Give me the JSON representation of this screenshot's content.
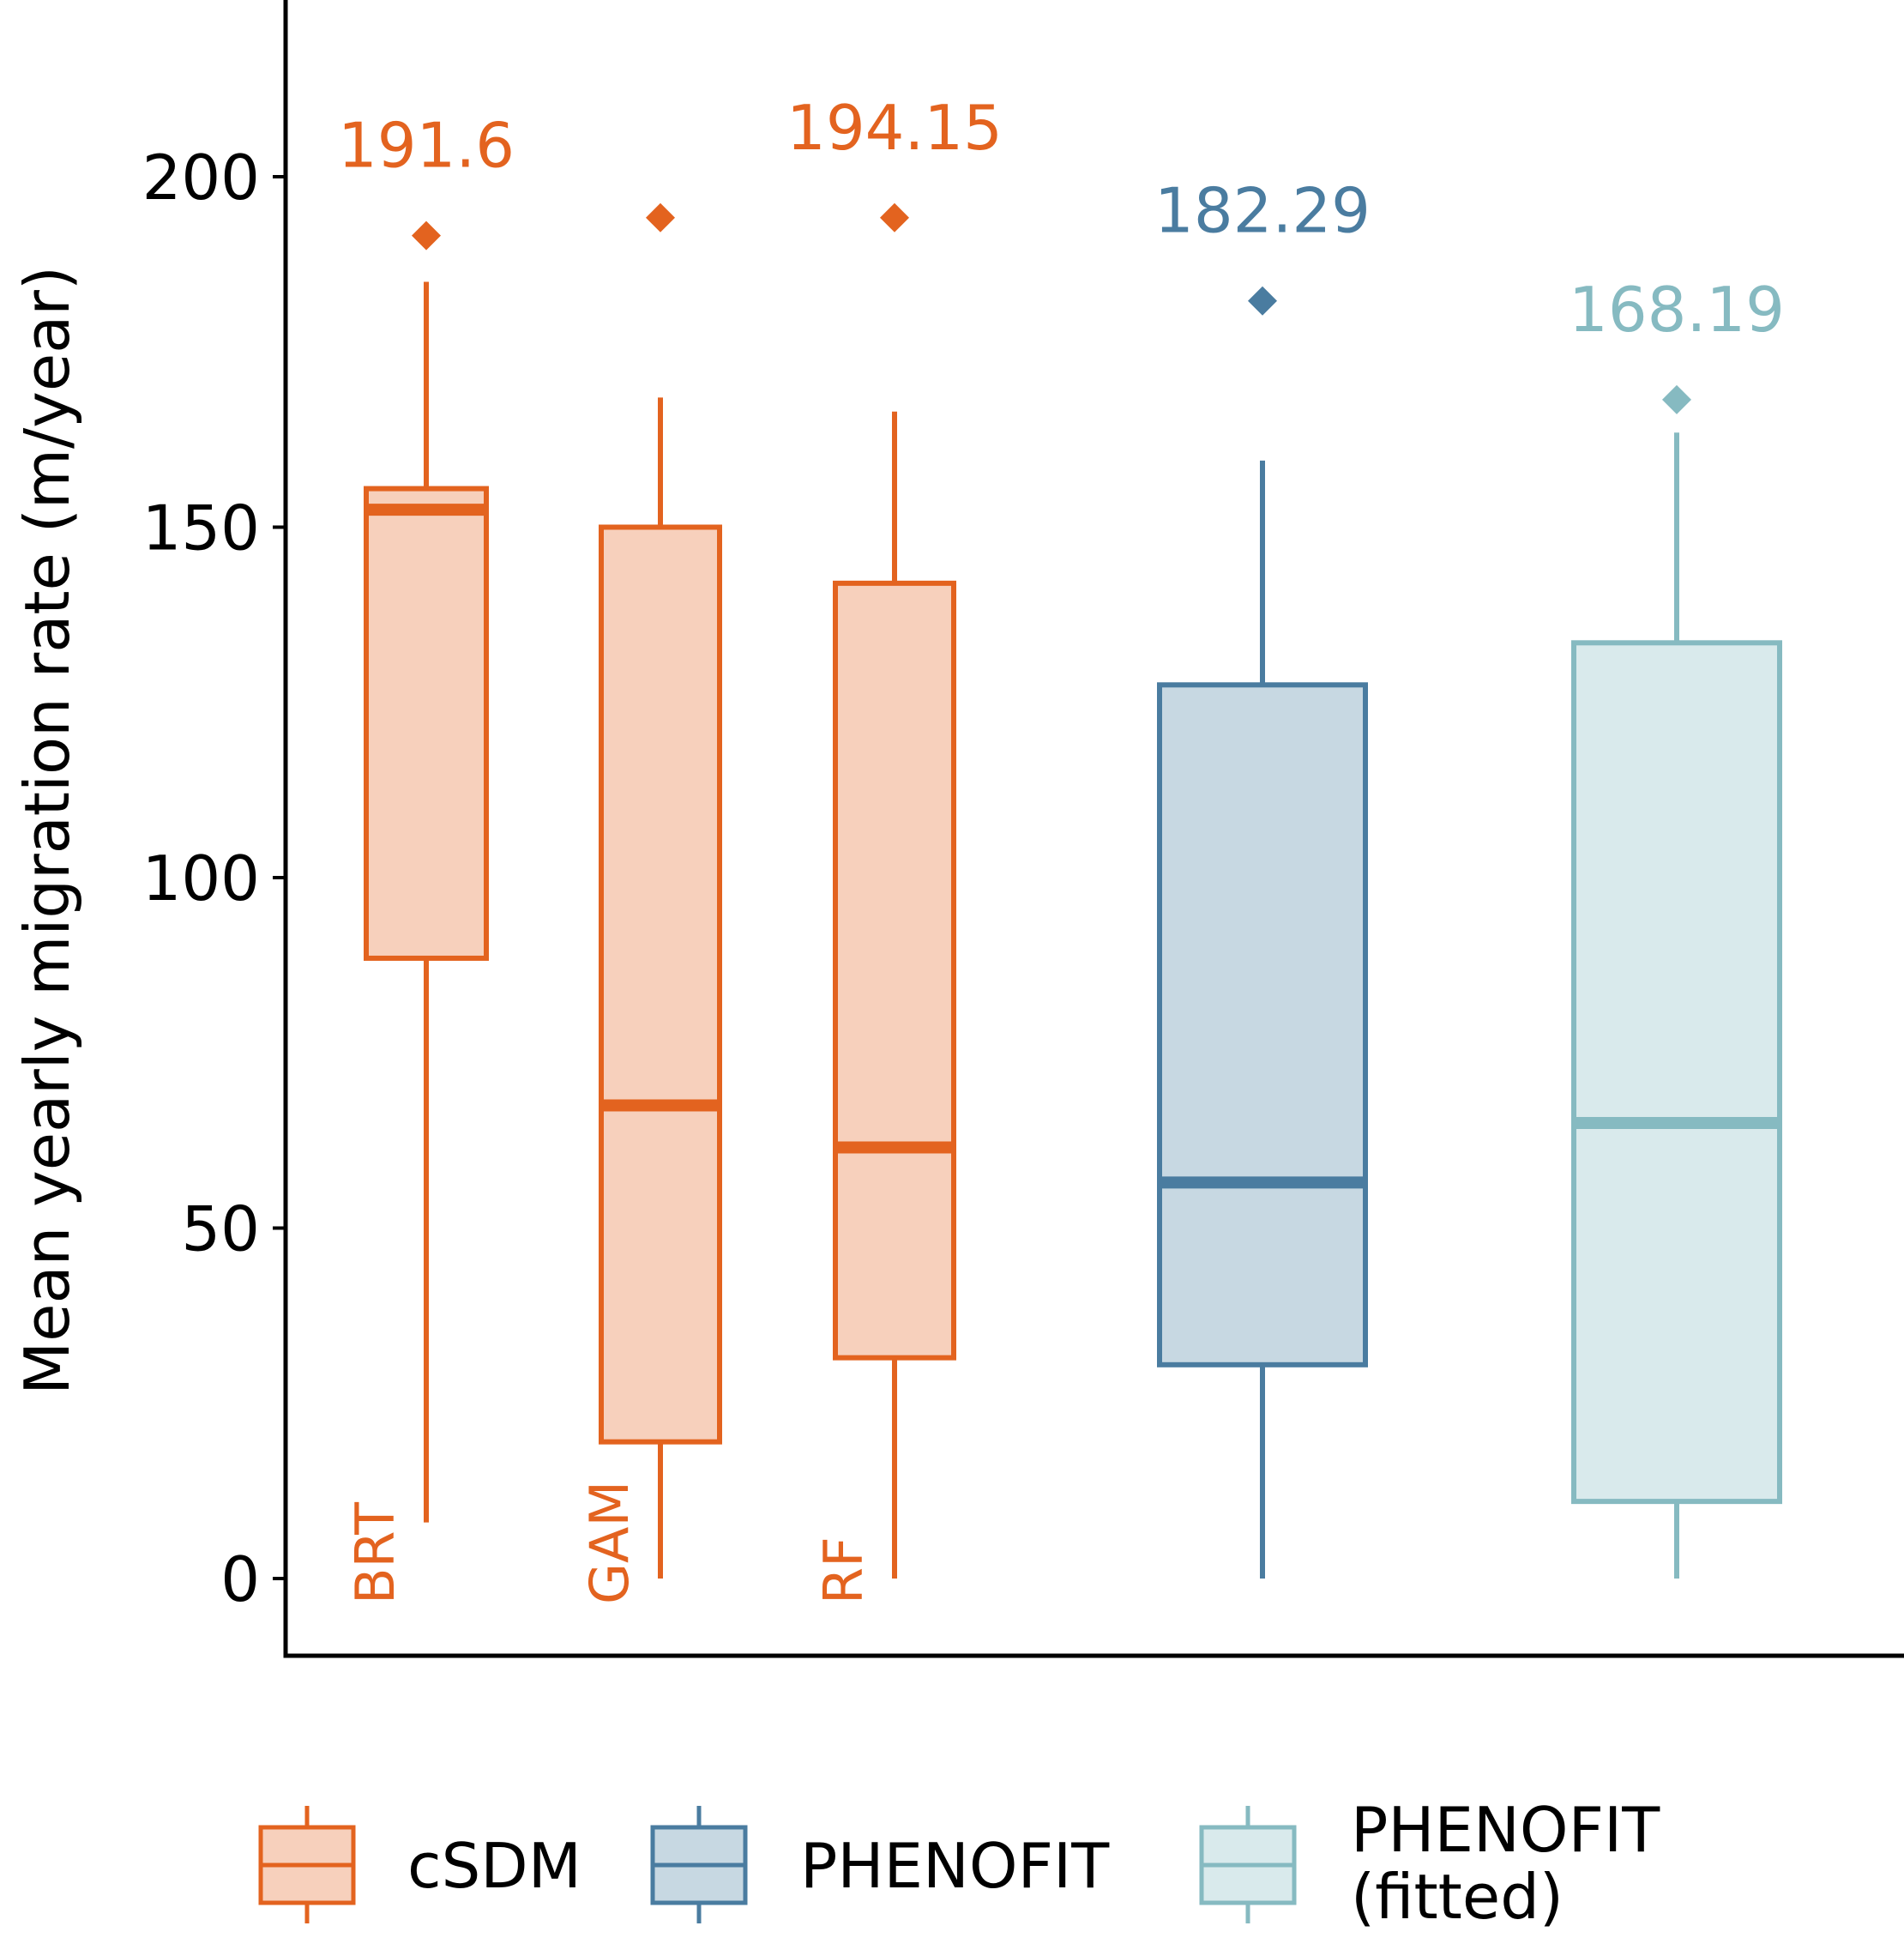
{
  "chart_data": {
    "type": "box",
    "ylabel": "Mean yearly migration rate (m/year)",
    "ylim": [
      -11,
      225
    ],
    "yticks": [
      "0",
      "50",
      "100",
      "150",
      "200"
    ],
    "grid": false,
    "legend_position": "bottom",
    "groups": [
      {
        "name": "cSDM",
        "color": "#E3631F",
        "fill": "#F7D0BC"
      },
      {
        "name": "PHENOFIT",
        "color": "#4A7CA0",
        "fill": "#C7D8E2"
      },
      {
        "name": "PHENOFIT (fitted)",
        "color": "#86BAC1",
        "fill": "#D9EAEC"
      }
    ],
    "boxes": [
      {
        "label": "BRT",
        "group": "cSDM",
        "whisker_low": 8,
        "q1": 88.5,
        "median": 152.5,
        "q3": 155.5,
        "whisker_high": 185,
        "mean": 191.6,
        "mean_label": "191.6"
      },
      {
        "label": "GAM",
        "group": "cSDM",
        "whisker_low": 0,
        "q1": 19.5,
        "median": 67.5,
        "q3": 150,
        "whisker_high": 168.5,
        "mean": 194.15,
        "mean_label": ""
      },
      {
        "label": "RF",
        "group": "cSDM",
        "whisker_low": 0,
        "q1": 31.5,
        "median": 61.5,
        "q3": 142,
        "whisker_high": 166.5,
        "mean": 194.15,
        "mean_label": "194.15"
      },
      {
        "label": "",
        "group": "PHENOFIT",
        "whisker_low": 0,
        "q1": 30.5,
        "median": 56.5,
        "q3": 127.5,
        "whisker_high": 159.5,
        "mean": 182.29,
        "mean_label": "182.29"
      },
      {
        "label": "",
        "group": "PHENOFIT (fitted)",
        "whisker_low": 0,
        "q1": 11,
        "median": 65,
        "q3": 133.5,
        "whisker_high": 163.5,
        "mean": 168.19,
        "mean_label": "168.19"
      }
    ],
    "legend": [
      {
        "label_lines": [
          "cSDM"
        ],
        "group": "cSDM"
      },
      {
        "label_lines": [
          "PHENOFIT"
        ],
        "group": "PHENOFIT"
      },
      {
        "label_lines": [
          "PHENOFIT",
          "(fitted)"
        ],
        "group": "PHENOFIT (fitted)"
      }
    ]
  }
}
